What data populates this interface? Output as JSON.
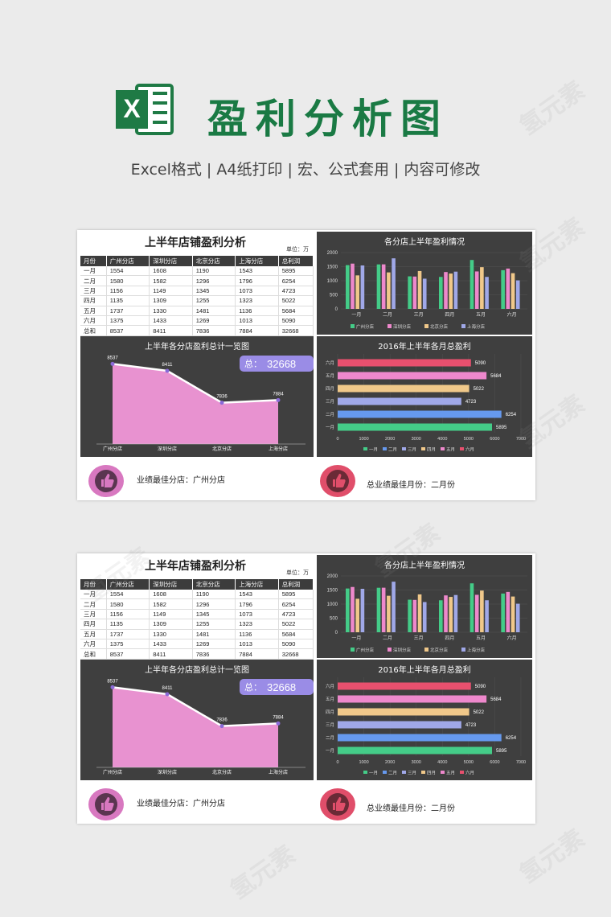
{
  "header": {
    "title": "盈利分析图",
    "subtitle": "Excel格式 | A4纸打印 | 宏、公式套用 | 内容可修改",
    "logo_letter": "X"
  },
  "watermark": "氢元素",
  "colors": {
    "excel_green": "#1f7a45",
    "series": [
      "#44cc88",
      "#ee88cc",
      "#f0c88a",
      "#a0a8e8"
    ],
    "month_series": [
      "#44cc88",
      "#6699ee",
      "#a0a8e8",
      "#f0c88a",
      "#ee88cc",
      "#e8506e"
    ],
    "area_fill": "#e892d0",
    "badge": "#9a8ce6"
  },
  "sheet": {
    "table_title": "上半年店铺盈利分析",
    "unit": "单位：万",
    "columns": [
      "月份",
      "广州分店",
      "深圳分店",
      "北京分店",
      "上海分店",
      "总利润"
    ],
    "rows": [
      [
        "一月",
        "1554",
        "1608",
        "1190",
        "1543",
        "5895"
      ],
      [
        "二月",
        "1580",
        "1582",
        "1296",
        "1796",
        "6254"
      ],
      [
        "三月",
        "1156",
        "1149",
        "1345",
        "1073",
        "4723"
      ],
      [
        "四月",
        "1135",
        "1309",
        "1255",
        "1323",
        "5022"
      ],
      [
        "五月",
        "1737",
        "1330",
        "1481",
        "1136",
        "5684"
      ],
      [
        "六月",
        "1375",
        "1433",
        "1269",
        "1013",
        "5090"
      ],
      [
        "总和",
        "8537",
        "8411",
        "7836",
        "7884",
        "32668"
      ]
    ],
    "bottom_left_label": "业绩最佳分店：广州分店",
    "bottom_right_label": "总业绩最佳月份：二月份"
  },
  "chart_data": [
    {
      "type": "bar",
      "title": "各分店上半年盈利情况",
      "categories": [
        "一月",
        "二月",
        "三月",
        "四月",
        "五月",
        "六月"
      ],
      "ylim": [
        0,
        2000
      ],
      "yticks": [
        "0",
        "500",
        "1000",
        "1500",
        "2000"
      ],
      "legend_position": "bottom",
      "series": [
        {
          "name": "广州分店",
          "values": [
            1554,
            1580,
            1156,
            1135,
            1737,
            1375
          ]
        },
        {
          "name": "深圳分店",
          "values": [
            1608,
            1582,
            1149,
            1309,
            1330,
            1433
          ]
        },
        {
          "name": "北京分店",
          "values": [
            1190,
            1296,
            1345,
            1255,
            1481,
            1269
          ]
        },
        {
          "name": "上海分店",
          "values": [
            1543,
            1796,
            1073,
            1323,
            1136,
            1013
          ]
        }
      ]
    },
    {
      "type": "area",
      "title": "上半年各分店盈利总计一览图",
      "categories": [
        "广州分店",
        "深圳分店",
        "北京分店",
        "上海分店"
      ],
      "values": [
        8537,
        8411,
        7836,
        7884
      ],
      "value_labels": [
        "8537",
        "8411",
        "7836",
        "7884"
      ],
      "badge_label": "总：",
      "badge_value": "32668"
    },
    {
      "type": "bar",
      "orientation": "horizontal",
      "title": "2016年上半年各月总盈利",
      "categories": [
        "一月",
        "二月",
        "三月",
        "四月",
        "五月",
        "六月"
      ],
      "values": [
        5895,
        6254,
        4723,
        5022,
        5684,
        5090
      ],
      "value_labels": [
        "5895",
        "6254",
        "4723",
        "5022",
        "5684",
        "5090"
      ],
      "xlim": [
        0,
        7000
      ],
      "xticks": [
        "0",
        "1000",
        "2000",
        "3000",
        "4000",
        "5000",
        "6000",
        "7000"
      ],
      "legend_position": "bottom"
    }
  ]
}
